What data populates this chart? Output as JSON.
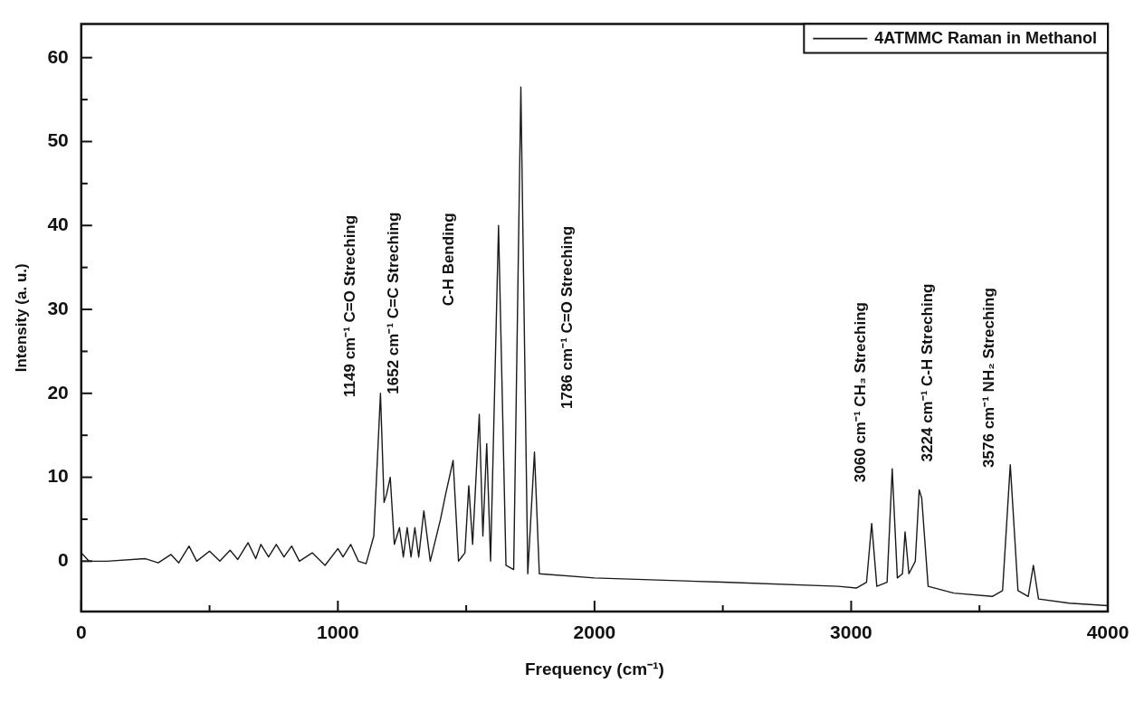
{
  "chart_data": {
    "type": "line",
    "xlabel": "Frequency (cm⁻¹)",
    "ylabel": "Intensity (a. u.)",
    "xlim": [
      0,
      4000
    ],
    "ylim": [
      -6,
      64
    ],
    "xticks": [
      0,
      {
        "value": 500,
        "label": null
      },
      1000,
      {
        "value": 1500,
        "label": null
      },
      2000,
      {
        "value": 2500,
        "label": null
      },
      3000,
      {
        "value": 3500,
        "label": null
      },
      4000
    ],
    "yticks": [
      0,
      {
        "value": 5,
        "label": null
      },
      10,
      {
        "value": 15,
        "label": null
      },
      20,
      {
        "value": 25,
        "label": null
      },
      30,
      {
        "value": 35,
        "label": null
      },
      40,
      {
        "value": 45,
        "label": null
      },
      50,
      {
        "value": 55,
        "label": null
      },
      60
    ],
    "grid": false,
    "legend": "top right",
    "marker": "none",
    "line_style": "solid",
    "x": [
      0,
      30,
      100,
      250,
      300,
      350,
      380,
      420,
      450,
      500,
      540,
      580,
      610,
      650,
      680,
      700,
      730,
      760,
      790,
      820,
      850,
      900,
      950,
      1000,
      1020,
      1050,
      1080,
      1110,
      1140,
      1166,
      1180,
      1190,
      1204,
      1220,
      1240,
      1255,
      1270,
      1285,
      1300,
      1315,
      1335,
      1360,
      1400,
      1420,
      1449,
      1470,
      1495,
      1510,
      1525,
      1540,
      1551,
      1565,
      1580,
      1595,
      1626,
      1655,
      1685,
      1713,
      1740,
      1766,
      1785,
      2000,
      2500,
      2950,
      3020,
      3060,
      3080,
      3100,
      3140,
      3160,
      3180,
      3200,
      3210,
      3225,
      3250,
      3265,
      3275,
      3300,
      3400,
      3550,
      3590,
      3620,
      3650,
      3690,
      3710,
      3730,
      3850,
      4000
    ],
    "series": [
      {
        "name": "4ATMMC Raman in Methanol",
        "color": "#1a1a1a",
        "values": [
          1,
          0,
          0,
          0.3,
          -0.2,
          0.8,
          -0.2,
          1.8,
          0,
          1.2,
          0,
          1.3,
          0.2,
          2.2,
          0.3,
          2,
          0.5,
          2,
          0.5,
          1.8,
          0,
          1,
          -0.5,
          1.5,
          0.5,
          2,
          0,
          -0.3,
          3,
          20,
          7,
          8,
          10,
          2,
          4,
          0.5,
          4,
          0.5,
          4,
          0.5,
          6,
          0,
          5,
          8,
          12,
          0,
          1,
          9,
          2,
          11,
          17.5,
          3,
          14,
          0,
          40,
          -0.5,
          -1,
          56.5,
          -1.5,
          13,
          -1.5,
          -2,
          -2.5,
          -3,
          -3.2,
          -2.5,
          4.5,
          -3,
          -2.5,
          11,
          -2,
          -1.5,
          3.5,
          -1.5,
          0,
          8.5,
          7.5,
          -3,
          -3.8,
          -4.2,
          -3.5,
          11.5,
          -3.5,
          -4.2,
          -0.5,
          -4.5,
          -5,
          -5.3
        ]
      }
    ],
    "annotations": [
      "1149 cm⁻¹ C=O Streching",
      "1652 cm⁻¹ C=C Streching",
      "C-H Bending",
      "1786 cm⁻¹ C=O Streching",
      "3060 cm⁻¹ CH₃ Streching",
      "3224 cm⁻¹ C-H Streching",
      "3576 cm⁻¹ NH₂ Streching"
    ]
  }
}
